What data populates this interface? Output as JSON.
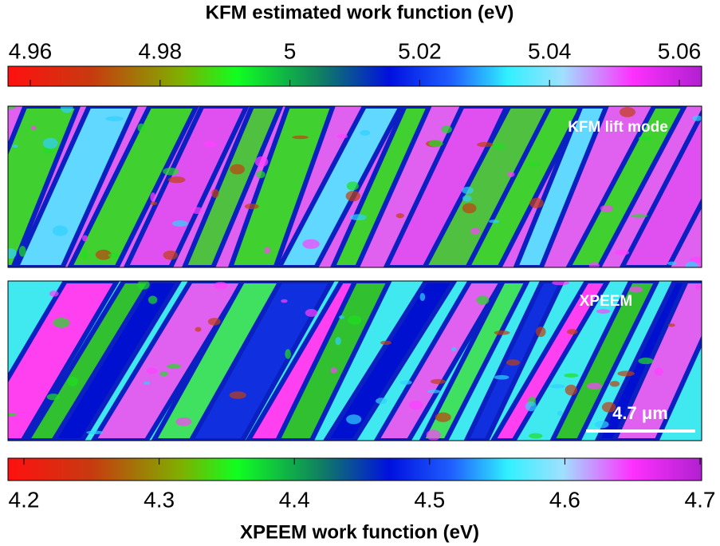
{
  "top_colorbar": {
    "title": "KFM estimated work function (eV)",
    "lim": [
      4.96,
      5.06
    ],
    "ticks": [
      4.96,
      4.98,
      5,
      5.02,
      5.04,
      5.06
    ]
  },
  "kfm_panel": {
    "label": "KFM lift mode"
  },
  "xpeem_panel": {
    "label": "XPEEM",
    "scale_bar": "4.7 μm"
  },
  "bottom_colorbar": {
    "title": "XPEEM work function (eV)",
    "lim": [
      4.2,
      4.7
    ],
    "ticks": [
      4.2,
      4.3,
      4.4,
      4.5,
      4.6,
      4.7
    ]
  }
}
